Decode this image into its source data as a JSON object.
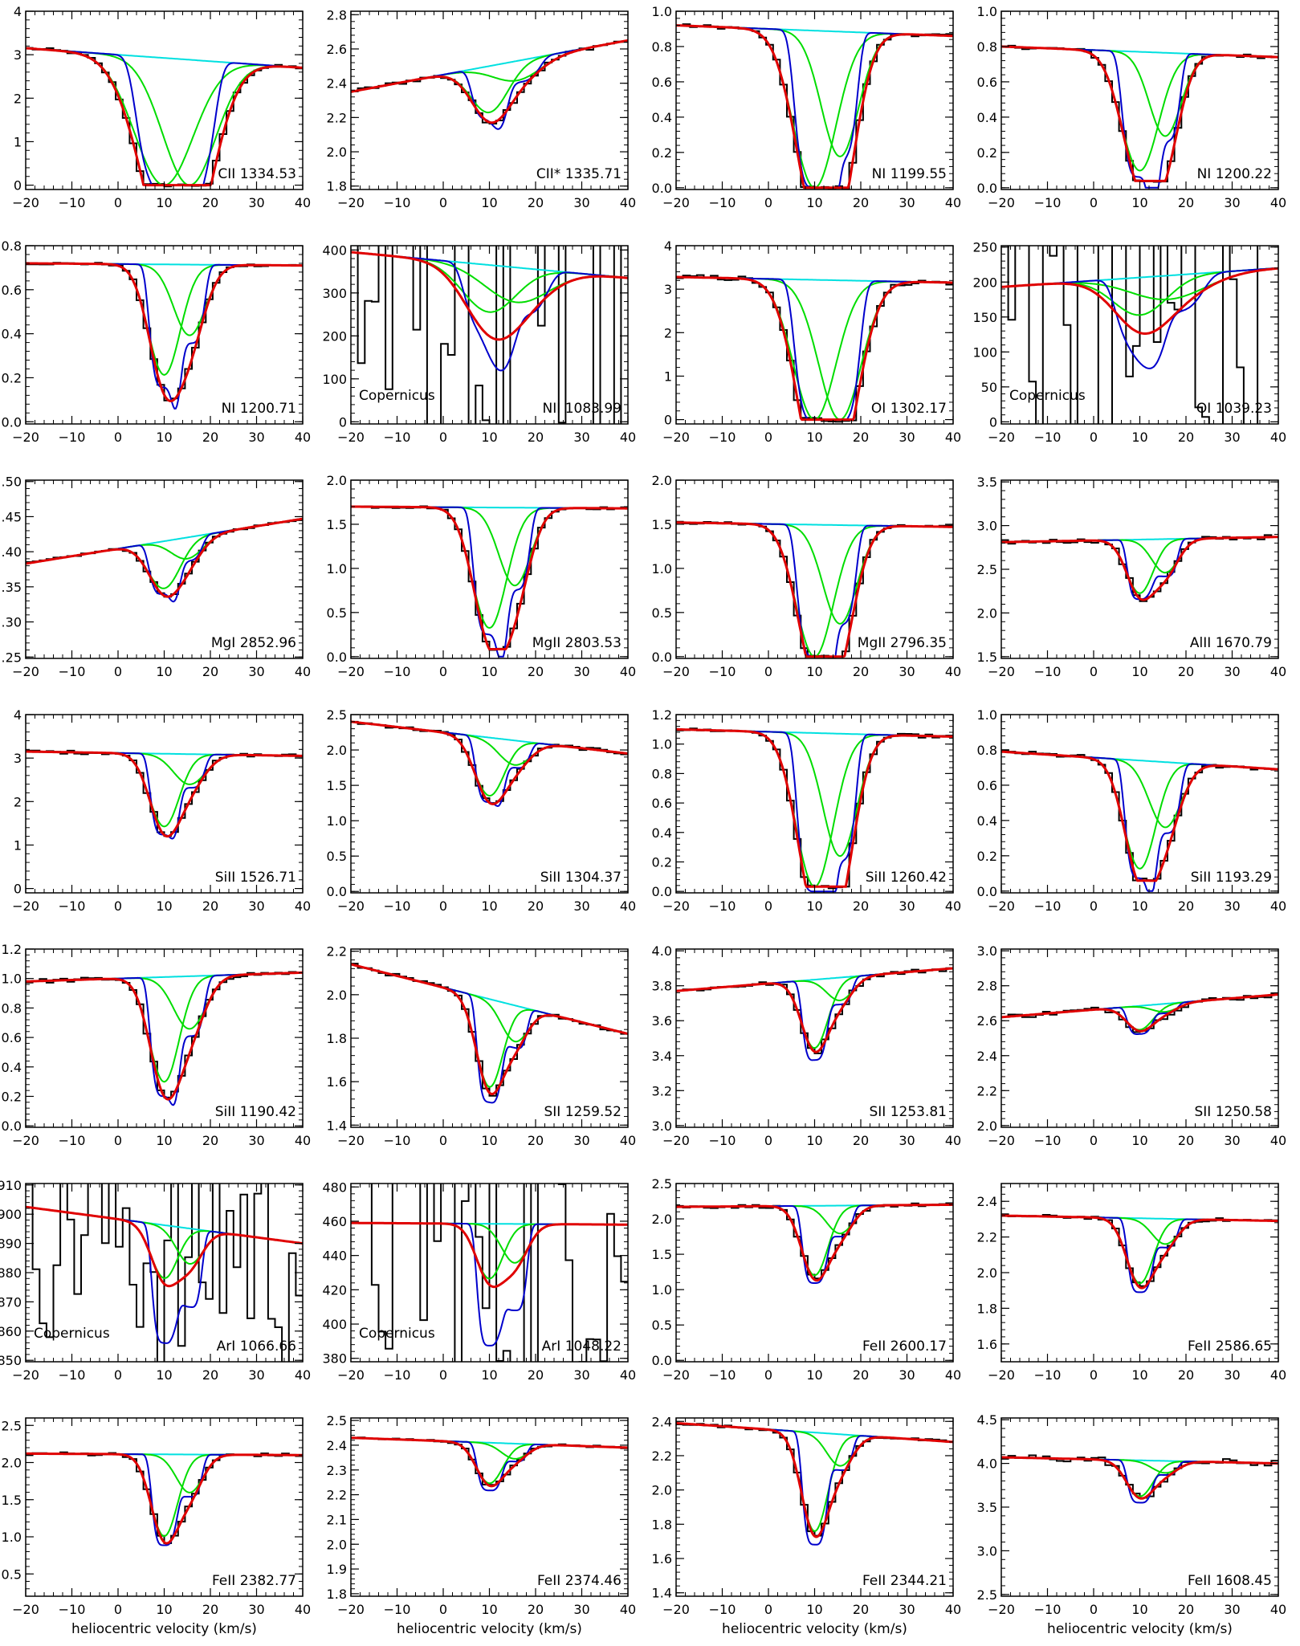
{
  "chart_data": {
    "type": "line",
    "xlim": [
      -20,
      40
    ],
    "x_ticks": [
      -20,
      -10,
      0,
      10,
      20,
      30,
      40
    ],
    "xlabel": "heliocentric velocity (km/s)",
    "line_colors": {
      "data": "#000000",
      "model": "#e00000",
      "intrinsic": "#0000cc",
      "component": "#00dd00",
      "continuum": "#00e0e0"
    },
    "grid": false,
    "panels": [
      {
        "label": "CII 1334.53",
        "note": "",
        "ylim": [
          -0.1,
          4.0
        ],
        "y_ticks": [
          "0",
          "1",
          "2",
          "3",
          "4"
        ],
        "continuum": [
          3.15,
          2.7
        ],
        "depth": 1.0,
        "comp1": {
          "v": 10,
          "w": 5.5,
          "d": 1.0
        },
        "comp2": {
          "v": 15.5,
          "w": 5.0,
          "d": 1.0
        },
        "smear": 1.0,
        "noise": 0.02
      },
      {
        "label": "CII* 1335.71",
        "note": "",
        "ylim": [
          1.78,
          2.82
        ],
        "y_ticks": [
          "1.8",
          "2.0",
          "2.2",
          "2.4",
          "2.6",
          "2.8"
        ],
        "continuum": [
          2.35,
          2.65
        ],
        "depth": 0.12,
        "comp1": {
          "v": 10,
          "w": 3.5,
          "d": 0.12
        },
        "comp2": {
          "v": 16,
          "w": 4.5,
          "d": 0.05
        },
        "smear": 0.9,
        "noise": 0.025
      },
      {
        "label": "NI  1199.55",
        "note": "",
        "ylim": [
          -0.01,
          1.0
        ],
        "y_ticks": [
          "0.0",
          "0.2",
          "0.4",
          "0.6",
          "0.8",
          "1.0"
        ],
        "continuum": [
          0.92,
          0.86
        ],
        "depth": 1.0,
        "comp1": {
          "v": 10,
          "w": 4.0,
          "d": 1.0
        },
        "comp2": {
          "v": 15.5,
          "w": 3.5,
          "d": 0.8
        },
        "smear": 1.0,
        "noise": 0.02
      },
      {
        "label": "NI  1200.22",
        "note": "",
        "ylim": [
          -0.01,
          1.0
        ],
        "y_ticks": [
          "0.0",
          "0.2",
          "0.4",
          "0.6",
          "0.8",
          "1.0"
        ],
        "continuum": [
          0.8,
          0.74
        ],
        "depth": 0.95,
        "comp1": {
          "v": 10,
          "w": 3.5,
          "d": 0.92
        },
        "comp2": {
          "v": 15.5,
          "w": 3.0,
          "d": 0.65
        },
        "smear": 0.95,
        "noise": 0.02
      },
      {
        "label": "NI  1200.71",
        "note": "",
        "ylim": [
          -0.01,
          0.8
        ],
        "y_ticks": [
          "0.0",
          "0.2",
          "0.4",
          "0.6",
          "0.8"
        ],
        "continuum": [
          0.72,
          0.71
        ],
        "depth": 0.85,
        "comp1": {
          "v": 10,
          "w": 3.0,
          "d": 0.78
        },
        "comp2": {
          "v": 15.5,
          "w": 3.0,
          "d": 0.5
        },
        "smear": 0.9,
        "noise": 0.015
      },
      {
        "label": "NII  1083.99",
        "note": "Copernicus",
        "ylim": [
          -5,
          410
        ],
        "y_ticks": [
          "0",
          "100",
          "200",
          "300",
          "400"
        ],
        "continuum": [
          395,
          335
        ],
        "depth": 0.5,
        "comp1": {
          "v": 10,
          "w": 5.0,
          "d": 0.4
        },
        "comp2": {
          "v": 16,
          "w": 6.0,
          "d": 0.3
        },
        "smear": 0.75,
        "noise": 4
      },
      {
        "label": "OI  1302.17",
        "note": "",
        "ylim": [
          -0.1,
          4.0
        ],
        "y_ticks": [
          "0",
          "1",
          "2",
          "3",
          "4"
        ],
        "continuum": [
          3.28,
          3.15
        ],
        "depth": 1.0,
        "comp1": {
          "v": 10,
          "w": 4.0,
          "d": 1.0
        },
        "comp2": {
          "v": 15.5,
          "w": 4.0,
          "d": 1.0
        },
        "smear": 1.0,
        "noise": 0.03
      },
      {
        "label": "OI  1039.23",
        "note": "Copernicus",
        "ylim": [
          -3,
          252
        ],
        "y_ticks": [
          "0",
          "50",
          "100",
          "150",
          "200",
          "250"
        ],
        "continuum": [
          193,
          220
        ],
        "depth": 0.5,
        "comp1": {
          "v": 10,
          "w": 5.0,
          "d": 0.4
        },
        "comp2": {
          "v": 16,
          "w": 7.0,
          "d": 0.25
        },
        "smear": 0.65,
        "noise": 3
      },
      {
        "label": "MgI 2852.96",
        "note": "",
        "ylim": [
          0.248,
          0.502
        ],
        "y_ticks": [
          ".25",
          ".30",
          ".35",
          ".40",
          ".45",
          ".50"
        ],
        "continuum": [
          0.383,
          0.447
        ],
        "depth": 0.2,
        "comp1": {
          "v": 10,
          "w": 3.0,
          "d": 0.18
        },
        "comp2": {
          "v": 15,
          "w": 3.0,
          "d": 0.08
        },
        "smear": 0.9,
        "noise": 0.012
      },
      {
        "label": "MgII 2803.53",
        "note": "",
        "ylim": [
          -0.02,
          2.0
        ],
        "y_ticks": [
          "0.0",
          "0.5",
          "1.0",
          "1.5",
          "2.0"
        ],
        "continuum": [
          1.7,
          1.68
        ],
        "depth": 0.9,
        "comp1": {
          "v": 10,
          "w": 3.2,
          "d": 0.85
        },
        "comp2": {
          "v": 15.5,
          "w": 3.0,
          "d": 0.55
        },
        "smear": 0.95,
        "noise": 0.015
      },
      {
        "label": "MgII 2796.35",
        "note": "",
        "ylim": [
          -0.02,
          2.0
        ],
        "y_ticks": [
          "0.0",
          "0.5",
          "1.0",
          "1.5",
          "2.0"
        ],
        "continuum": [
          1.52,
          1.47
        ],
        "depth": 1.0,
        "comp1": {
          "v": 10,
          "w": 3.5,
          "d": 1.0
        },
        "comp2": {
          "v": 15.5,
          "w": 3.2,
          "d": 0.75
        },
        "smear": 1.0,
        "noise": 0.015
      },
      {
        "label": "AlII  1670.79",
        "note": "",
        "ylim": [
          1.48,
          3.52
        ],
        "y_ticks": [
          "1.5",
          "2.0",
          "2.5",
          "3.0",
          "3.5"
        ],
        "continuum": [
          2.81,
          2.87
        ],
        "depth": 0.25,
        "comp1": {
          "v": 10,
          "w": 2.5,
          "d": 0.24
        },
        "comp2": {
          "v": 15.5,
          "w": 2.5,
          "d": 0.15
        },
        "smear": 0.9,
        "noise": 0.025
      },
      {
        "label": "SiII  1526.71",
        "note": "",
        "ylim": [
          -0.1,
          4.0
        ],
        "y_ticks": [
          "0",
          "1",
          "2",
          "3",
          "4"
        ],
        "continuum": [
          3.15,
          3.05
        ],
        "depth": 0.65,
        "comp1": {
          "v": 10,
          "w": 2.8,
          "d": 0.6
        },
        "comp2": {
          "v": 15.5,
          "w": 3.0,
          "d": 0.25
        },
        "smear": 0.9,
        "noise": 0.02
      },
      {
        "label": "SiII  1304.37",
        "note": "",
        "ylim": [
          -0.02,
          2.5
        ],
        "y_ticks": [
          "0.0",
          "0.5",
          "1.0",
          "1.5",
          "2.0",
          "2.5"
        ],
        "continuum": [
          2.4,
          1.95
        ],
        "depth": 0.45,
        "comp1": {
          "v": 10,
          "w": 2.8,
          "d": 0.42
        },
        "comp2": {
          "v": 15.5,
          "w": 3.0,
          "d": 0.18
        },
        "smear": 0.9,
        "noise": 0.02
      },
      {
        "label": "SiII  1260.42",
        "note": "",
        "ylim": [
          -0.01,
          1.2
        ],
        "y_ticks": [
          "0.0",
          "0.2",
          "0.4",
          "0.6",
          "0.8",
          "1.0",
          "1.2"
        ],
        "continuum": [
          1.1,
          1.05
        ],
        "depth": 1.0,
        "comp1": {
          "v": 10,
          "w": 3.5,
          "d": 1.0
        },
        "comp2": {
          "v": 15.5,
          "w": 3.2,
          "d": 0.8
        },
        "smear": 0.97,
        "noise": 0.02
      },
      {
        "label": "SiII  1193.29",
        "note": "",
        "ylim": [
          -0.01,
          1.0
        ],
        "y_ticks": [
          "0.0",
          "0.2",
          "0.4",
          "0.6",
          "0.8",
          "1.0"
        ],
        "continuum": [
          0.79,
          0.69
        ],
        "depth": 0.95,
        "comp1": {
          "v": 10,
          "w": 3.0,
          "d": 0.9
        },
        "comp2": {
          "v": 15.5,
          "w": 3.0,
          "d": 0.55
        },
        "smear": 0.92,
        "noise": 0.025
      },
      {
        "label": "SiII  1190.42",
        "note": "",
        "ylim": [
          -0.01,
          1.2
        ],
        "y_ticks": [
          "0.0",
          "0.2",
          "0.4",
          "0.6",
          "0.8",
          "1.0",
          "1.2"
        ],
        "continuum": [
          0.98,
          1.04
        ],
        "depth": 0.85,
        "comp1": {
          "v": 10,
          "w": 2.8,
          "d": 0.8
        },
        "comp2": {
          "v": 15.5,
          "w": 3.0,
          "d": 0.4
        },
        "smear": 0.88,
        "noise": 0.025
      },
      {
        "label": "SII  1259.52",
        "note": "",
        "ylim": [
          1.39,
          2.21
        ],
        "y_ticks": [
          "1.4",
          "1.6",
          "1.8",
          "2.0",
          "2.2"
        ],
        "continuum": [
          2.14,
          1.82
        ],
        "depth": 0.25,
        "comp1": {
          "v": 10,
          "w": 2.5,
          "d": 0.24
        },
        "comp2": {
          "v": 15.5,
          "w": 2.5,
          "d": 0.1
        },
        "smear": 0.85,
        "noise": 0.02
      },
      {
        "label": "SII  1253.81",
        "note": "",
        "ylim": [
          2.99,
          4.01
        ],
        "y_ticks": [
          "3.0",
          "3.2",
          "3.4",
          "3.6",
          "3.8",
          "4.0"
        ],
        "continuum": [
          3.77,
          3.9
        ],
        "depth": 0.13,
        "comp1": {
          "v": 10,
          "w": 2.5,
          "d": 0.12
        },
        "comp2": {
          "v": 15.5,
          "w": 2.5,
          "d": 0.04
        },
        "smear": 0.85,
        "noise": 0.025
      },
      {
        "label": "SII  1250.58",
        "note": "",
        "ylim": [
          1.99,
          3.01
        ],
        "y_ticks": [
          "2.0",
          "2.2",
          "2.4",
          "2.6",
          "2.8",
          "3.0"
        ],
        "continuum": [
          2.62,
          2.75
        ],
        "depth": 0.06,
        "comp1": {
          "v": 10,
          "w": 2.5,
          "d": 0.06
        },
        "comp2": {
          "v": 15.5,
          "w": 2.5,
          "d": 0.02
        },
        "smear": 0.85,
        "noise": 0.03
      },
      {
        "label": "ArI  1066.66",
        "note": "Copernicus",
        "ylim": [
          849.5,
          910.5
        ],
        "y_ticks": [
          "850",
          "860",
          "870",
          "880",
          "890",
          "900",
          "910"
        ],
        "continuum": [
          902.5,
          890
        ],
        "depth": 0.05,
        "comp1": {
          "v": 10,
          "w": 2.5,
          "d": 0.045
        },
        "comp2": {
          "v": 15.5,
          "w": 2.5,
          "d": 0.03
        },
        "smear": 0.45,
        "noise": 1.5
      },
      {
        "label": "ArI  1048.22",
        "note": "Copernicus",
        "ylim": [
          378,
          482
        ],
        "y_ticks": [
          "380",
          "400",
          "420",
          "440",
          "460",
          "480"
        ],
        "continuum": [
          459,
          458
        ],
        "depth": 0.16,
        "comp1": {
          "v": 10,
          "w": 2.5,
          "d": 0.155
        },
        "comp2": {
          "v": 15.5,
          "w": 2.5,
          "d": 0.11
        },
        "smear": 0.45,
        "noise": 2
      },
      {
        "label": "FeII 2600.17",
        "note": "",
        "ylim": [
          -0.02,
          2.5
        ],
        "y_ticks": [
          "0.0",
          "0.5",
          "1.0",
          "1.5",
          "2.0",
          "2.5"
        ],
        "continuum": [
          2.17,
          2.2
        ],
        "depth": 0.5,
        "comp1": {
          "v": 10,
          "w": 2.5,
          "d": 0.5
        },
        "comp2": {
          "v": 15.5,
          "w": 2.5,
          "d": 0.2
        },
        "smear": 0.9,
        "noise": 0.02
      },
      {
        "label": "FeII 2586.65",
        "note": "",
        "ylim": [
          1.5,
          2.5
        ],
        "y_ticks": [
          "1.6",
          "1.8",
          "2.0",
          "2.2",
          "2.4"
        ],
        "continuum": [
          2.32,
          2.29
        ],
        "depth": 0.18,
        "comp1": {
          "v": 10,
          "w": 2.5,
          "d": 0.18
        },
        "comp2": {
          "v": 15.5,
          "w": 2.5,
          "d": 0.07
        },
        "smear": 0.88,
        "noise": 0.02
      },
      {
        "label": "FeII 2382.77",
        "note": "",
        "ylim": [
          0.2,
          2.6
        ],
        "y_ticks": [
          "0.5",
          "1.0",
          "1.5",
          "2.0",
          "2.5"
        ],
        "continuum": [
          2.12,
          2.1
        ],
        "depth": 0.58,
        "comp1": {
          "v": 10,
          "w": 2.5,
          "d": 0.58
        },
        "comp2": {
          "v": 15.5,
          "w": 2.5,
          "d": 0.27
        },
        "smear": 0.9,
        "noise": 0.02
      },
      {
        "label": "FeII 2374.46",
        "note": "",
        "ylim": [
          1.79,
          2.51
        ],
        "y_ticks": [
          "1.8",
          "1.9",
          "2.0",
          "2.1",
          "2.2",
          "2.3",
          "2.4",
          "2.5"
        ],
        "continuum": [
          2.43,
          2.39
        ],
        "depth": 0.08,
        "comp1": {
          "v": 10,
          "w": 2.5,
          "d": 0.08
        },
        "comp2": {
          "v": 15.5,
          "w": 2.5,
          "d": 0.03
        },
        "smear": 0.85,
        "noise": 0.015
      },
      {
        "label": "FeII 2344.21",
        "note": "",
        "ylim": [
          1.38,
          2.42
        ],
        "y_ticks": [
          "1.4",
          "1.6",
          "1.8",
          "2.0",
          "2.2",
          "2.4"
        ],
        "continuum": [
          2.39,
          2.28
        ],
        "depth": 0.28,
        "comp1": {
          "v": 10,
          "w": 2.5,
          "d": 0.28
        },
        "comp2": {
          "v": 15.5,
          "w": 2.5,
          "d": 0.09
        },
        "smear": 0.88,
        "noise": 0.015
      },
      {
        "label": "FeII 1608.45",
        "note": "",
        "ylim": [
          2.48,
          4.52
        ],
        "y_ticks": [
          "2.5",
          "3.0",
          "3.5",
          "4.0",
          "4.5"
        ],
        "continuum": [
          4.07,
          4.0
        ],
        "depth": 0.12,
        "comp1": {
          "v": 10,
          "w": 2.5,
          "d": 0.12
        },
        "comp2": {
          "v": 15.5,
          "w": 2.5,
          "d": 0.04
        },
        "smear": 0.85,
        "noise": 0.04
      }
    ]
  }
}
